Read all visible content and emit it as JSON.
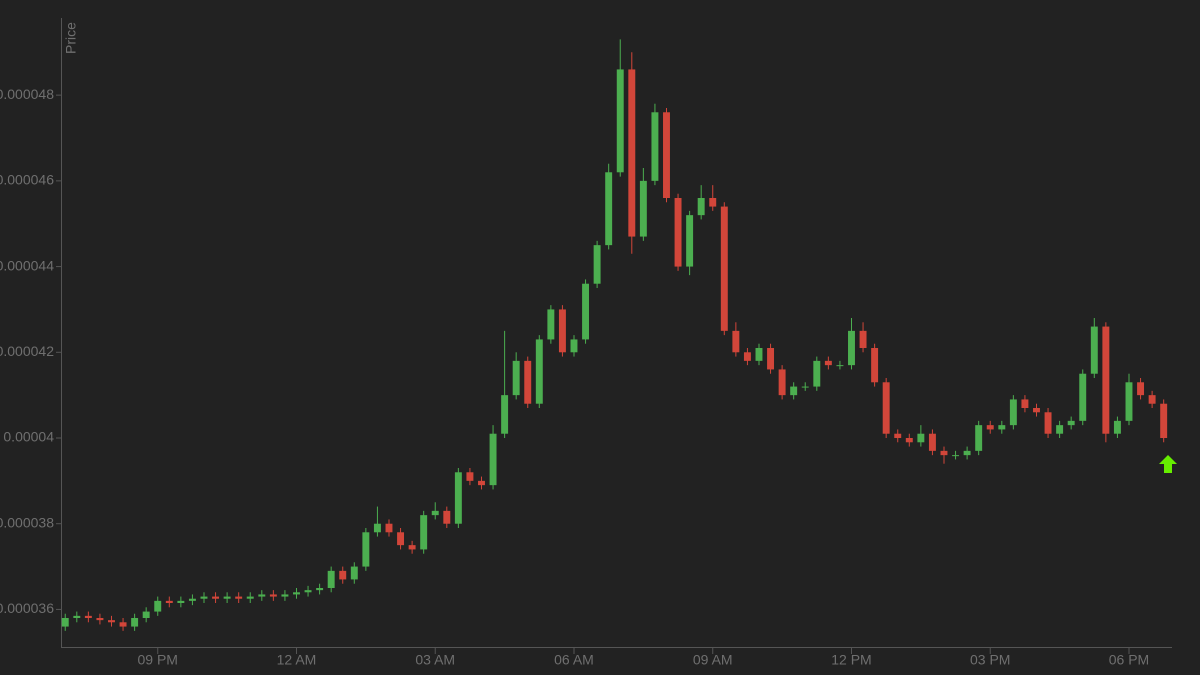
{
  "chart_data": {
    "type": "candlestick",
    "y_label": "Price",
    "x": [
      19,
      19.25,
      19.5,
      19.75,
      20,
      20.25,
      20.5,
      20.75,
      21,
      21.25,
      21.5,
      21.75,
      22,
      22.25,
      22.5,
      22.75,
      23,
      23.25,
      23.5,
      23.75,
      24,
      24.25,
      24.5,
      24.75,
      25,
      25.25,
      25.5,
      25.75,
      26,
      26.25,
      26.5,
      26.75,
      27,
      27.25,
      27.5,
      27.75,
      28,
      28.25,
      28.5,
      28.75,
      29,
      29.25,
      29.5,
      29.75,
      30,
      30.25,
      30.5,
      30.75,
      31,
      31.25,
      31.5,
      31.75,
      32,
      32.25,
      32.5,
      32.75,
      33,
      33.25,
      33.5,
      33.75,
      34,
      34.25,
      34.5,
      34.75,
      35,
      35.25,
      35.5,
      35.75,
      36,
      36.25,
      36.5,
      36.75,
      37,
      37.25,
      37.5,
      37.75,
      38,
      38.25,
      38.5,
      38.75,
      39,
      39.25,
      39.5,
      39.75,
      40,
      40.25,
      40.5,
      40.75,
      41,
      41.25,
      41.5,
      41.75,
      42,
      42.25,
      42.5,
      42.75
    ],
    "open": [
      3.56e-05,
      3.58e-05,
      3.585e-05,
      3.58e-05,
      3.575e-05,
      3.57e-05,
      3.56e-05,
      3.58e-05,
      3.595e-05,
      3.62e-05,
      3.615e-05,
      3.62e-05,
      3.625e-05,
      3.63e-05,
      3.625e-05,
      3.63e-05,
      3.625e-05,
      3.63e-05,
      3.635e-05,
      3.63e-05,
      3.635e-05,
      3.64e-05,
      3.645e-05,
      3.65e-05,
      3.69e-05,
      3.67e-05,
      3.7e-05,
      3.78e-05,
      3.8e-05,
      3.78e-05,
      3.75e-05,
      3.74e-05,
      3.82e-05,
      3.83e-05,
      3.8e-05,
      3.92e-05,
      3.9e-05,
      3.89e-05,
      4.01e-05,
      4.1e-05,
      4.18e-05,
      4.08e-05,
      4.23e-05,
      4.3e-05,
      4.2e-05,
      4.23e-05,
      4.36e-05,
      4.45e-05,
      4.62e-05,
      4.86e-05,
      4.47e-05,
      4.6e-05,
      4.76e-05,
      4.56e-05,
      4.4e-05,
      4.52e-05,
      4.56e-05,
      4.54e-05,
      4.25e-05,
      4.2e-05,
      4.18e-05,
      4.21e-05,
      4.16e-05,
      4.1e-05,
      4.12e-05,
      4.12e-05,
      4.18e-05,
      4.17e-05,
      4.17e-05,
      4.25e-05,
      4.21e-05,
      4.13e-05,
      4.01e-05,
      4e-05,
      3.99e-05,
      4.01e-05,
      3.97e-05,
      3.96e-05,
      3.96e-05,
      3.97e-05,
      4.03e-05,
      4.02e-05,
      4.03e-05,
      4.09e-05,
      4.07e-05,
      4.06e-05,
      4.01e-05,
      4.03e-05,
      4.04e-05,
      4.15e-05,
      4.26e-05,
      4.01e-05,
      4.04e-05,
      4.13e-05,
      4.1e-05,
      4.08e-05
    ],
    "high": [
      3.59e-05,
      3.595e-05,
      3.595e-05,
      3.59e-05,
      3.585e-05,
      3.58e-05,
      3.59e-05,
      3.605e-05,
      3.63e-05,
      3.63e-05,
      3.63e-05,
      3.635e-05,
      3.64e-05,
      3.64e-05,
      3.64e-05,
      3.64e-05,
      3.64e-05,
      3.645e-05,
      3.645e-05,
      3.645e-05,
      3.65e-05,
      3.655e-05,
      3.66e-05,
      3.7e-05,
      3.7e-05,
      3.71e-05,
      3.79e-05,
      3.84e-05,
      3.81e-05,
      3.79e-05,
      3.76e-05,
      3.83e-05,
      3.85e-05,
      3.84e-05,
      3.93e-05,
      3.93e-05,
      3.91e-05,
      4.03e-05,
      4.25e-05,
      4.2e-05,
      4.19e-05,
      4.24e-05,
      4.31e-05,
      4.31e-05,
      4.24e-05,
      4.37e-05,
      4.46e-05,
      4.64e-05,
      4.93e-05,
      4.9e-05,
      4.63e-05,
      4.78e-05,
      4.77e-05,
      4.57e-05,
      4.53e-05,
      4.59e-05,
      4.59e-05,
      4.55e-05,
      4.27e-05,
      4.21e-05,
      4.22e-05,
      4.22e-05,
      4.17e-05,
      4.13e-05,
      4.13e-05,
      4.19e-05,
      4.19e-05,
      4.18e-05,
      4.28e-05,
      4.27e-05,
      4.22e-05,
      4.14e-05,
      4.02e-05,
      4.01e-05,
      4.03e-05,
      4.02e-05,
      3.98e-05,
      3.97e-05,
      3.98e-05,
      4.04e-05,
      4.04e-05,
      4.04e-05,
      4.1e-05,
      4.1e-05,
      4.08e-05,
      4.07e-05,
      4.04e-05,
      4.05e-05,
      4.16e-05,
      4.28e-05,
      4.27e-05,
      4.05e-05,
      4.15e-05,
      4.14e-05,
      4.11e-05,
      4.09e-05
    ],
    "low": [
      3.55e-05,
      3.57e-05,
      3.57e-05,
      3.565e-05,
      3.56e-05,
      3.55e-05,
      3.55e-05,
      3.57e-05,
      3.585e-05,
      3.605e-05,
      3.605e-05,
      3.61e-05,
      3.615e-05,
      3.615e-05,
      3.615e-05,
      3.615e-05,
      3.615e-05,
      3.62e-05,
      3.62e-05,
      3.62e-05,
      3.625e-05,
      3.63e-05,
      3.635e-05,
      3.64e-05,
      3.66e-05,
      3.66e-05,
      3.69e-05,
      3.77e-05,
      3.77e-05,
      3.74e-05,
      3.73e-05,
      3.73e-05,
      3.81e-05,
      3.79e-05,
      3.79e-05,
      3.89e-05,
      3.88e-05,
      3.88e-05,
      4e-05,
      4.09e-05,
      4.07e-05,
      4.07e-05,
      4.22e-05,
      4.19e-05,
      4.19e-05,
      4.22e-05,
      4.35e-05,
      4.44e-05,
      4.61e-05,
      4.43e-05,
      4.46e-05,
      4.59e-05,
      4.55e-05,
      4.39e-05,
      4.38e-05,
      4.51e-05,
      4.53e-05,
      4.24e-05,
      4.19e-05,
      4.17e-05,
      4.17e-05,
      4.15e-05,
      4.09e-05,
      4.09e-05,
      4.11e-05,
      4.11e-05,
      4.16e-05,
      4.16e-05,
      4.16e-05,
      4.2e-05,
      4.12e-05,
      4e-05,
      3.99e-05,
      3.98e-05,
      3.98e-05,
      3.96e-05,
      3.94e-05,
      3.95e-05,
      3.95e-05,
      3.96e-05,
      4.01e-05,
      4.01e-05,
      4.02e-05,
      4.06e-05,
      4.05e-05,
      4e-05,
      4e-05,
      4.02e-05,
      4.03e-05,
      4.14e-05,
      3.99e-05,
      4e-05,
      4.03e-05,
      4.09e-05,
      4.07e-05,
      3.99e-05
    ],
    "close": [
      3.58e-05,
      3.585e-05,
      3.58e-05,
      3.575e-05,
      3.57e-05,
      3.56e-05,
      3.58e-05,
      3.595e-05,
      3.62e-05,
      3.615e-05,
      3.62e-05,
      3.625e-05,
      3.63e-05,
      3.625e-05,
      3.63e-05,
      3.625e-05,
      3.63e-05,
      3.635e-05,
      3.63e-05,
      3.635e-05,
      3.64e-05,
      3.645e-05,
      3.65e-05,
      3.69e-05,
      3.67e-05,
      3.7e-05,
      3.78e-05,
      3.8e-05,
      3.78e-05,
      3.75e-05,
      3.74e-05,
      3.82e-05,
      3.83e-05,
      3.8e-05,
      3.92e-05,
      3.9e-05,
      3.89e-05,
      4.01e-05,
      4.1e-05,
      4.18e-05,
      4.08e-05,
      4.23e-05,
      4.3e-05,
      4.2e-05,
      4.23e-05,
      4.36e-05,
      4.45e-05,
      4.62e-05,
      4.86e-05,
      4.47e-05,
      4.6e-05,
      4.76e-05,
      4.56e-05,
      4.4e-05,
      4.52e-05,
      4.56e-05,
      4.54e-05,
      4.25e-05,
      4.2e-05,
      4.18e-05,
      4.21e-05,
      4.16e-05,
      4.1e-05,
      4.12e-05,
      4.12e-05,
      4.18e-05,
      4.17e-05,
      4.17e-05,
      4.25e-05,
      4.21e-05,
      4.13e-05,
      4.01e-05,
      4e-05,
      3.99e-05,
      4.01e-05,
      3.97e-05,
      3.96e-05,
      3.96e-05,
      3.97e-05,
      4.03e-05,
      4.02e-05,
      4.03e-05,
      4.09e-05,
      4.07e-05,
      4.06e-05,
      4.01e-05,
      4.03e-05,
      4.04e-05,
      4.15e-05,
      4.26e-05,
      4.01e-05,
      4.04e-05,
      4.13e-05,
      4.1e-05,
      4.08e-05,
      4e-05
    ],
    "up_color": "#4caf50",
    "down_color": "#d2463a",
    "xlim": [
      18.93,
      42.93
    ],
    "xticks": [
      {
        "value": 21,
        "label": "09 PM"
      },
      {
        "value": 24,
        "label": "12 AM"
      },
      {
        "value": 27,
        "label": "03 AM"
      },
      {
        "value": 30,
        "label": "06 AM"
      },
      {
        "value": 33,
        "label": "09 AM"
      },
      {
        "value": 36,
        "label": "12 PM"
      },
      {
        "value": 39,
        "label": "03 PM"
      },
      {
        "value": 42,
        "label": "06 PM"
      }
    ],
    "ylim": [
      3.51e-05,
      4.98e-05
    ],
    "yticks": [
      3.6e-05,
      3.8e-05,
      4e-05,
      4.2e-05,
      4.4e-05,
      4.6e-05,
      4.8e-05
    ]
  }
}
